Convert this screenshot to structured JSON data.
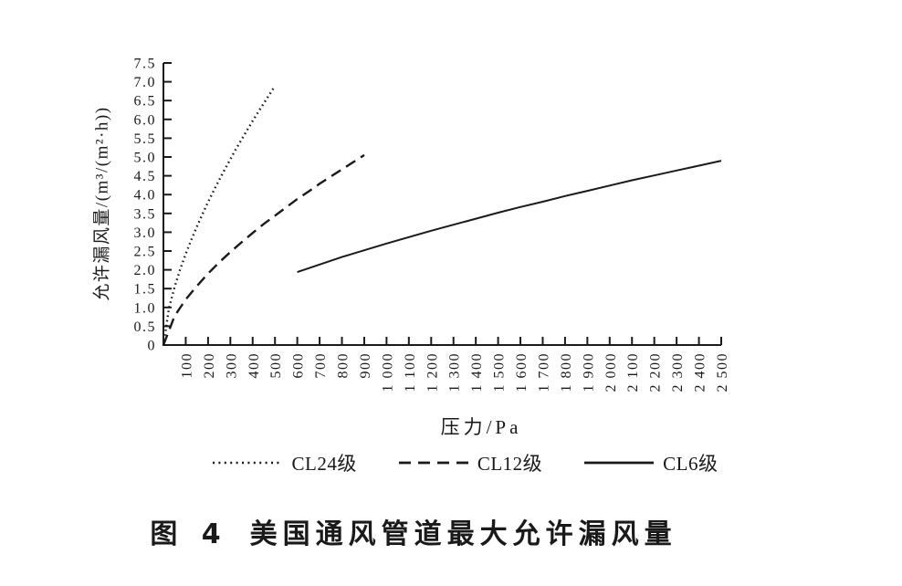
{
  "caption": {
    "number": "图 4",
    "title": "美国通风管道最大允许漏风量"
  },
  "colors": {
    "ink": "#1a1a1a",
    "background": "#ffffff"
  },
  "chart_data": {
    "type": "line",
    "title": "图 4 美国通风管道最大允许漏风量",
    "xlabel": "压力/Pa",
    "ylabel": "允许漏风量/(m³/(m²·h))",
    "xlim": [
      0,
      2500
    ],
    "ylim": [
      0,
      7.5
    ],
    "grid": false,
    "legend_position": "bottom",
    "xtick_values": [
      100,
      200,
      300,
      400,
      500,
      600,
      700,
      800,
      900,
      1000,
      1100,
      1200,
      1300,
      1400,
      1500,
      1600,
      1700,
      1800,
      1900,
      2000,
      2100,
      2200,
      2300,
      2400,
      2500
    ],
    "xtick_labels": [
      "100",
      "200",
      "300",
      "400",
      "500",
      "600",
      "700",
      "800",
      "900",
      "1 000",
      "1 100",
      "1 200",
      "1 300",
      "1 400",
      "1 500",
      "1 600",
      "1 700",
      "1 800",
      "1 900",
      "2 000",
      "2 100",
      "2 200",
      "2 300",
      "2 400",
      "2 500"
    ],
    "ytick_values": [
      0,
      0.5,
      1,
      1.5,
      2,
      2.5,
      3,
      3.5,
      4,
      4.5,
      5,
      5.5,
      6,
      6.5,
      7,
      7.5
    ],
    "ytick_labels": [
      "0",
      "0.5",
      "1.0",
      "1.5",
      "2.0",
      "2.5",
      "3.0",
      "3.5",
      "4.0",
      "4.5",
      "5.0",
      "5.5",
      "6.0",
      "6.5",
      "7.0",
      "7.5"
    ],
    "series": [
      {
        "name": "CL24级",
        "line_style": "dotted",
        "x": [
          0,
          25,
          50,
          75,
          100,
          125,
          150,
          175,
          200,
          225,
          250,
          275,
          300,
          325,
          350,
          375,
          400,
          425,
          450,
          475,
          500
        ],
        "y": [
          0,
          0.98,
          1.54,
          2.01,
          2.42,
          2.8,
          3.15,
          3.48,
          3.8,
          4.1,
          4.39,
          4.67,
          4.94,
          5.21,
          5.46,
          5.71,
          5.96,
          6.2,
          6.43,
          6.66,
          6.89
        ]
      },
      {
        "name": "CL12级",
        "line_style": "dashed",
        "x": [
          0,
          50,
          100,
          150,
          200,
          250,
          300,
          350,
          400,
          450,
          500,
          550,
          600,
          650,
          700,
          750,
          800,
          850,
          900
        ],
        "y": [
          0,
          0.77,
          1.21,
          1.57,
          1.9,
          2.2,
          2.47,
          2.73,
          2.98,
          3.22,
          3.44,
          3.66,
          3.88,
          4.08,
          4.29,
          4.48,
          4.67,
          4.86,
          5.05
        ]
      },
      {
        "name": "CL6级",
        "line_style": "solid",
        "x": [
          600,
          700,
          800,
          900,
          1000,
          1100,
          1200,
          1300,
          1400,
          1500,
          1600,
          1700,
          1800,
          1900,
          2000,
          2100,
          2200,
          2300,
          2400,
          2500
        ],
        "y": [
          1.94,
          2.14,
          2.34,
          2.52,
          2.7,
          2.87,
          3.04,
          3.2,
          3.36,
          3.52,
          3.67,
          3.81,
          3.96,
          4.1,
          4.24,
          4.38,
          4.51,
          4.64,
          4.77,
          4.9
        ]
      }
    ]
  }
}
